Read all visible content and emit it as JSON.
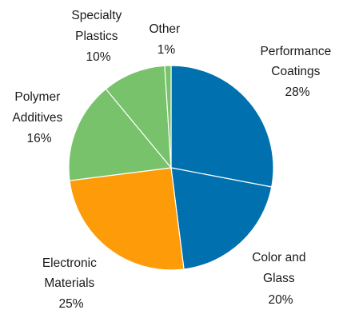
{
  "chart_data": {
    "type": "pie",
    "title": "",
    "slices": [
      {
        "lines": [
          "Performance",
          "Coatings"
        ],
        "value": 28,
        "value_label": "28%",
        "color": "#0070ae"
      },
      {
        "lines": [
          "Color and",
          "Glass"
        ],
        "value": 20,
        "value_label": "20%",
        "color": "#0070ae"
      },
      {
        "lines": [
          "Electronic",
          "Materials"
        ],
        "value": 25,
        "value_label": "25%",
        "color": "#fd9b09"
      },
      {
        "lines": [
          "Polymer",
          "Additives"
        ],
        "value": 16,
        "value_label": "16%",
        "color": "#78c26c"
      },
      {
        "lines": [
          "Specialty",
          "Plastics"
        ],
        "value": 10,
        "value_label": "10%",
        "color": "#78c26c"
      },
      {
        "lines": [
          "Other"
        ],
        "value": 1,
        "value_label": "1%",
        "color": "#78c26c"
      }
    ]
  }
}
